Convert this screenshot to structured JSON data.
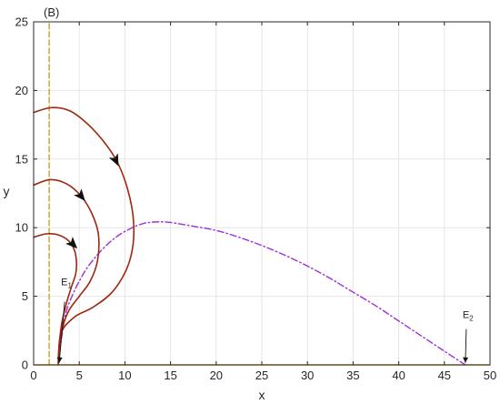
{
  "panel_label": "(B)",
  "chart_data": {
    "type": "line",
    "title": "",
    "xlabel": "x",
    "ylabel": "y",
    "xlim": [
      0,
      50
    ],
    "ylim": [
      0,
      25
    ],
    "xticks": [
      0,
      5,
      10,
      15,
      20,
      25,
      30,
      35,
      40,
      45,
      50
    ],
    "yticks": [
      0,
      5,
      10,
      15,
      20,
      25
    ],
    "grid": true,
    "colors": {
      "trajectory": "#a0260e",
      "x_nullcline": "#9b30d9",
      "y_nullcline": "#c8a028",
      "x_axis_line": "#c8a028",
      "arrowhead": "#111111",
      "grid": "#e6e6e6"
    },
    "series": [
      {
        "role": "trajectory",
        "points": [
          [
            0,
            18.4
          ],
          [
            2,
            18.75
          ],
          [
            4,
            18.5
          ],
          [
            6,
            17.5
          ],
          [
            8,
            16.0
          ],
          [
            9.3,
            14.6
          ],
          [
            10.3,
            12.8
          ],
          [
            10.9,
            10.8
          ],
          [
            10.9,
            8.8
          ],
          [
            10.2,
            7.0
          ],
          [
            8.6,
            5.3
          ],
          [
            6.5,
            4.2
          ],
          [
            4.5,
            3.5
          ],
          [
            3.0,
            2.3
          ],
          [
            2.7,
            0.1
          ]
        ],
        "arrow_at": [
          9.0,
          14.9
        ]
      },
      {
        "role": "trajectory",
        "points": [
          [
            0,
            13.1
          ],
          [
            1.8,
            13.5
          ],
          [
            3.6,
            13.2
          ],
          [
            5.2,
            12.3
          ],
          [
            6.4,
            11.0
          ],
          [
            7.1,
            9.5
          ],
          [
            7.0,
            7.6
          ],
          [
            6.2,
            6.1
          ],
          [
            5.0,
            5.0
          ],
          [
            3.9,
            4.0
          ],
          [
            3.2,
            2.8
          ],
          [
            2.8,
            1.2
          ],
          [
            2.7,
            0.1
          ]
        ],
        "arrow_at": [
          5.2,
          12.3
        ]
      },
      {
        "role": "trajectory",
        "points": [
          [
            0,
            9.3
          ],
          [
            1.4,
            9.55
          ],
          [
            2.8,
            9.45
          ],
          [
            3.9,
            9.0
          ],
          [
            4.5,
            8.3
          ],
          [
            4.7,
            7.4
          ],
          [
            4.6,
            6.6
          ],
          [
            4.1,
            5.6
          ],
          [
            3.6,
            4.5
          ],
          [
            3.1,
            3.1
          ],
          [
            2.8,
            1.5
          ],
          [
            2.7,
            0.1
          ]
        ],
        "arrow_at": [
          4.3,
          8.8
        ]
      },
      {
        "role": "x_nullcline",
        "points": [
          [
            2.7,
            0
          ],
          [
            3.0,
            1.7
          ],
          [
            3.5,
            3.7
          ],
          [
            4.2,
            5.0
          ],
          [
            5.0,
            6.1
          ],
          [
            6.0,
            7.2
          ],
          [
            7.5,
            8.4
          ],
          [
            9.0,
            9.3
          ],
          [
            10.5,
            9.9
          ],
          [
            12.0,
            10.3
          ],
          [
            13.5,
            10.42
          ],
          [
            15.0,
            10.38
          ],
          [
            17.5,
            10.1
          ],
          [
            20.0,
            9.8
          ],
          [
            22.5,
            9.3
          ],
          [
            25.0,
            8.7
          ],
          [
            27.5,
            8.0
          ],
          [
            30.0,
            7.2
          ],
          [
            32.5,
            6.3
          ],
          [
            35.0,
            5.3
          ],
          [
            37.5,
            4.3
          ],
          [
            40.0,
            3.2
          ],
          [
            42.5,
            2.1
          ],
          [
            45.0,
            1.0
          ],
          [
            47.3,
            0
          ]
        ]
      },
      {
        "role": "y_nullcline",
        "points": [
          [
            1.7,
            0
          ],
          [
            1.7,
            25
          ]
        ]
      },
      {
        "role": "x_axis_line",
        "points": [
          [
            0,
            0
          ],
          [
            50,
            0
          ]
        ]
      }
    ],
    "annotations": [
      {
        "label": "E",
        "subscript": "1",
        "text_at": [
          3.0,
          5.8
        ],
        "arrow_from": [
          3.4,
          4.6
        ],
        "arrow_to": [
          2.8,
          0.15
        ]
      },
      {
        "label": "E",
        "subscript": "2",
        "text_at": [
          47.0,
          3.4
        ],
        "arrow_from": [
          47.4,
          2.6
        ],
        "arrow_to": [
          47.3,
          0.15
        ]
      }
    ]
  }
}
